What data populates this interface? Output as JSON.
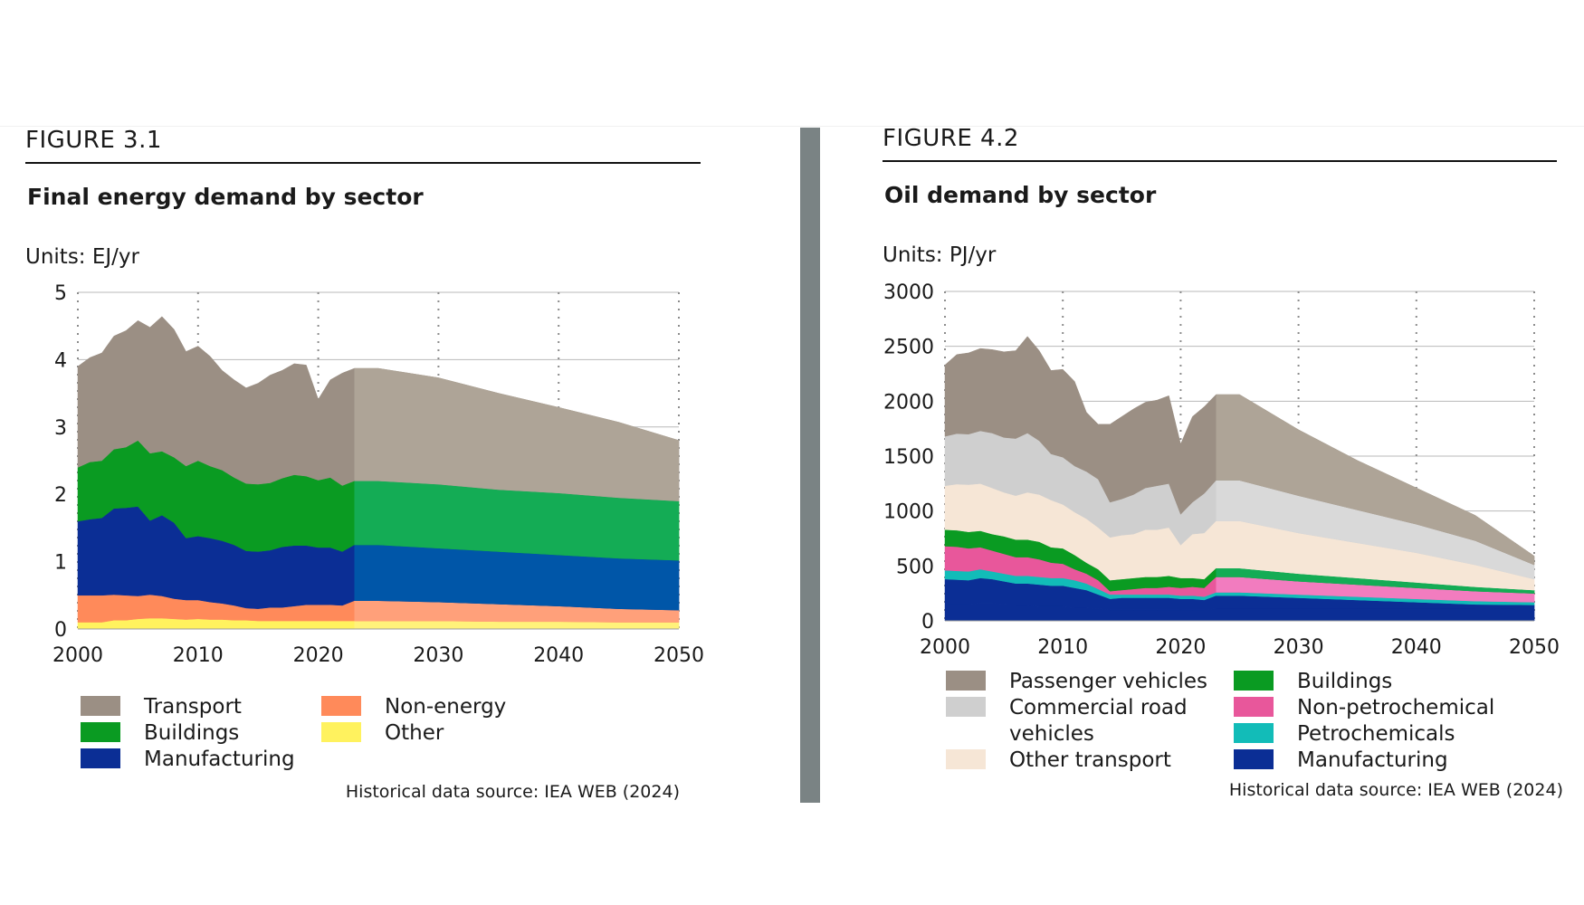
{
  "figures": [
    {
      "figure_label": "FIGURE 3.1",
      "title": "Final energy demand by sector",
      "units": "Units: EJ/yr",
      "source": "Historical data source: IEA WEB (2024)",
      "legend": [
        {
          "label": "Transport",
          "color": "#9b8f84"
        },
        {
          "label": "Buildings",
          "color": "#0a9b22"
        },
        {
          "label": "Manufacturing",
          "color": "#0b2e95"
        },
        {
          "label": "Non-energy",
          "color": "#ff8a5a"
        },
        {
          "label": "Other",
          "color": "#fff25e"
        }
      ]
    },
    {
      "figure_label": "FIGURE 4.2",
      "title": "Oil demand by sector",
      "units": "Units: PJ/yr",
      "source": "Historical data source: IEA WEB (2024)",
      "legend": [
        {
          "label": "Passenger vehicles",
          "color": "#9b8f84"
        },
        {
          "label": "Commercial road vehicles",
          "color": "#cfcfcf"
        },
        {
          "label": "Other transport",
          "color": "#f6e6d6"
        },
        {
          "label": "Buildings",
          "color": "#0a9b22"
        },
        {
          "label": "Non-petrochemical",
          "color": "#e8579b"
        },
        {
          "label": "Petrochemicals",
          "color": "#12bcb8"
        },
        {
          "label": "Manufacturing",
          "color": "#0b2e95"
        }
      ]
    }
  ],
  "chart_data": [
    {
      "type": "area",
      "stacked": true,
      "title": "Final energy demand by sector",
      "ylabel": "EJ/yr",
      "x": [
        2000,
        2001,
        2002,
        2003,
        2004,
        2005,
        2006,
        2007,
        2008,
        2009,
        2010,
        2011,
        2012,
        2013,
        2014,
        2015,
        2016,
        2017,
        2018,
        2019,
        2020,
        2021,
        2022,
        2023,
        2025,
        2030,
        2035,
        2040,
        2045,
        2050
      ],
      "xticks": [
        2000,
        2010,
        2020,
        2030,
        2040,
        2050
      ],
      "xlim": [
        2000,
        2050
      ],
      "ylim": [
        0,
        5
      ],
      "yticks": [
        0,
        1,
        2,
        3,
        4,
        5
      ],
      "forecast_start": 2023,
      "series": [
        {
          "name": "Other",
          "color": "#fff25e",
          "forecast_color": "#fff27a",
          "values": [
            0.1,
            0.1,
            0.1,
            0.13,
            0.13,
            0.15,
            0.16,
            0.16,
            0.15,
            0.14,
            0.15,
            0.14,
            0.14,
            0.13,
            0.13,
            0.12,
            0.12,
            0.12,
            0.12,
            0.12,
            0.12,
            0.12,
            0.12,
            0.12,
            0.12,
            0.12,
            0.11,
            0.11,
            0.1,
            0.1
          ]
        },
        {
          "name": "Non-energy",
          "color": "#ff8a5a",
          "forecast_color": "#ffa07a",
          "values": [
            0.4,
            0.4,
            0.4,
            0.38,
            0.37,
            0.34,
            0.35,
            0.33,
            0.3,
            0.29,
            0.28,
            0.26,
            0.24,
            0.22,
            0.18,
            0.18,
            0.2,
            0.2,
            0.22,
            0.24,
            0.24,
            0.24,
            0.23,
            0.3,
            0.3,
            0.28,
            0.26,
            0.23,
            0.2,
            0.18
          ]
        },
        {
          "name": "Manufacturing",
          "color": "#0b2e95",
          "forecast_color": "#0056a8",
          "values": [
            1.1,
            1.13,
            1.15,
            1.28,
            1.3,
            1.33,
            1.1,
            1.2,
            1.13,
            0.92,
            0.95,
            0.95,
            0.93,
            0.9,
            0.85,
            0.85,
            0.85,
            0.9,
            0.9,
            0.88,
            0.85,
            0.85,
            0.8,
            0.83,
            0.83,
            0.8,
            0.78,
            0.76,
            0.75,
            0.74
          ]
        },
        {
          "name": "Buildings",
          "color": "#0a9b22",
          "forecast_color": "#14ac55",
          "values": [
            0.8,
            0.85,
            0.85,
            0.88,
            0.9,
            0.98,
            1.0,
            0.95,
            0.97,
            1.07,
            1.12,
            1.07,
            1.05,
            1.0,
            1.0,
            1.0,
            1.0,
            1.02,
            1.05,
            1.03,
            1.0,
            1.04,
            0.98,
            0.95,
            0.95,
            0.95,
            0.92,
            0.92,
            0.9,
            0.88
          ]
        },
        {
          "name": "Transport",
          "color": "#9b8f84",
          "forecast_color": "#aea497",
          "values": [
            1.5,
            1.55,
            1.6,
            1.68,
            1.73,
            1.78,
            1.87,
            2.0,
            1.9,
            1.7,
            1.7,
            1.63,
            1.48,
            1.45,
            1.42,
            1.5,
            1.6,
            1.6,
            1.65,
            1.65,
            1.2,
            1.45,
            1.67,
            1.67,
            1.67,
            1.58,
            1.43,
            1.27,
            1.12,
            0.9
          ]
        }
      ]
    },
    {
      "type": "area",
      "stacked": true,
      "title": "Oil demand by sector",
      "ylabel": "PJ/yr",
      "x": [
        2000,
        2001,
        2002,
        2003,
        2004,
        2005,
        2006,
        2007,
        2008,
        2009,
        2010,
        2011,
        2012,
        2013,
        2014,
        2015,
        2016,
        2017,
        2018,
        2019,
        2020,
        2021,
        2022,
        2023,
        2025,
        2030,
        2035,
        2040,
        2045,
        2050
      ],
      "xticks": [
        2000,
        2010,
        2020,
        2030,
        2040,
        2050
      ],
      "xlim": [
        2000,
        2050
      ],
      "ylim": [
        0,
        3000
      ],
      "yticks": [
        0,
        500,
        1000,
        1500,
        2000,
        2500,
        3000
      ],
      "forecast_start": 2023,
      "series": [
        {
          "name": "Manufacturing",
          "color": "#0b2e95",
          "forecast_color": "#0b2e95",
          "values": [
            150,
            150,
            150,
            160,
            160,
            150,
            140,
            140,
            130,
            130,
            130,
            120,
            120,
            110,
            100,
            100,
            100,
            100,
            100,
            100,
            100,
            100,
            100,
            110,
            110,
            110,
            110,
            110,
            110,
            115
          ]
        },
        {
          "name": "Manufacturing",
          "color": "#0b2e95",
          "forecast_color": "#0b2e95",
          "values": [
            230,
            225,
            220,
            230,
            220,
            210,
            200,
            200,
            200,
            190,
            190,
            180,
            160,
            130,
            100,
            110,
            110,
            110,
            110,
            110,
            100,
            100,
            90,
            120,
            120,
            100,
            80,
            60,
            40,
            30
          ]
        },
        {
          "name": "Petrochemicals",
          "color": "#12bcb8",
          "forecast_color": "#12bcb8",
          "values": [
            80,
            80,
            80,
            80,
            70,
            70,
            70,
            70,
            70,
            70,
            70,
            70,
            60,
            50,
            40,
            30,
            30,
            30,
            30,
            30,
            30,
            30,
            30,
            30,
            30,
            30,
            30,
            30,
            30,
            25
          ]
        },
        {
          "name": "Non-petrochemical",
          "color": "#e8579b",
          "forecast_color": "#f27cbf",
          "values": [
            220,
            220,
            210,
            200,
            190,
            180,
            170,
            170,
            160,
            140,
            130,
            100,
            90,
            80,
            30,
            40,
            50,
            60,
            60,
            70,
            70,
            80,
            80,
            140,
            140,
            120,
            110,
            100,
            90,
            80
          ]
        },
        {
          "name": "Buildings",
          "color": "#0a9b22",
          "forecast_color": "#14ac55",
          "values": [
            150,
            150,
            150,
            150,
            150,
            160,
            160,
            160,
            160,
            140,
            140,
            130,
            100,
            100,
            100,
            100,
            100,
            100,
            100,
            100,
            90,
            80,
            80,
            80,
            80,
            70,
            60,
            50,
            40,
            30
          ]
        },
        {
          "name": "Other transport",
          "color": "#f6e6d6",
          "forecast_color": "#f6e6d6",
          "values": [
            400,
            420,
            430,
            430,
            420,
            400,
            400,
            430,
            430,
            430,
            400,
            390,
            400,
            380,
            390,
            400,
            400,
            430,
            430,
            440,
            300,
            400,
            420,
            430,
            430,
            370,
            320,
            270,
            200,
            100
          ]
        },
        {
          "name": "Commercial road vehicles",
          "color": "#cfcfcf",
          "forecast_color": "#d9d9d9",
          "values": [
            450,
            460,
            460,
            480,
            500,
            500,
            520,
            540,
            490,
            420,
            430,
            420,
            430,
            440,
            320,
            330,
            360,
            380,
            400,
            400,
            280,
            290,
            360,
            370,
            370,
            340,
            300,
            260,
            220,
            130
          ]
        },
        {
          "name": "Passenger vehicles",
          "color": "#9b8f84",
          "forecast_color": "#aea497",
          "values": [
            650,
            720,
            740,
            750,
            760,
            780,
            800,
            880,
            820,
            760,
            800,
            770,
            540,
            500,
            710,
            750,
            780,
            780,
            780,
            800,
            640,
            780,
            790,
            780,
            780,
            600,
            450,
            330,
            230,
            80
          ]
        }
      ]
    }
  ]
}
